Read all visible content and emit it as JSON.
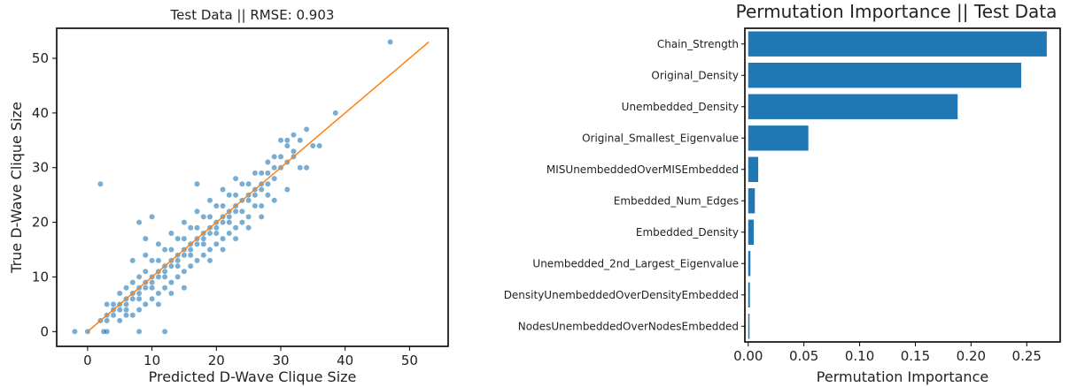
{
  "chart_data": [
    {
      "type": "scatter",
      "title": "Test Data || RMSE: 0.903",
      "xlabel": "Predicted D-Wave Clique Size",
      "ylabel": "True D-Wave Clique Size",
      "xlim": [
        -4.8,
        56
      ],
      "ylim": [
        -2.7,
        55.5
      ],
      "xticks": [
        0,
        10,
        20,
        30,
        40,
        50
      ],
      "yticks": [
        0,
        10,
        20,
        30,
        40,
        50
      ],
      "point_color": "#1f77b4",
      "line_color": "#ff7f0e",
      "reference_line": {
        "x": [
          0,
          53
        ],
        "y": [
          0,
          53
        ]
      },
      "points": [
        [
          -2,
          0
        ],
        [
          0,
          0
        ],
        [
          2,
          27
        ],
        [
          2.5,
          0
        ],
        [
          3,
          0
        ],
        [
          8,
          0
        ],
        [
          12,
          0
        ],
        [
          2,
          2
        ],
        [
          3,
          2
        ],
        [
          3,
          3
        ],
        [
          4,
          3
        ],
        [
          5,
          4
        ],
        [
          4,
          4
        ],
        [
          6,
          4
        ],
        [
          5,
          5
        ],
        [
          6,
          5
        ],
        [
          7,
          6
        ],
        [
          6,
          6
        ],
        [
          8,
          6
        ],
        [
          7,
          7
        ],
        [
          8,
          7
        ],
        [
          9,
          8
        ],
        [
          8,
          8
        ],
        [
          10,
          8
        ],
        [
          9,
          9
        ],
        [
          10,
          9
        ],
        [
          11,
          10
        ],
        [
          10,
          10
        ],
        [
          12,
          10
        ],
        [
          11,
          11
        ],
        [
          12,
          11
        ],
        [
          13,
          12
        ],
        [
          12,
          12
        ],
        [
          14,
          12
        ],
        [
          13,
          13
        ],
        [
          14,
          13
        ],
        [
          15,
          14
        ],
        [
          14,
          14
        ],
        [
          16,
          14
        ],
        [
          15,
          15
        ],
        [
          16,
          15
        ],
        [
          17,
          16
        ],
        [
          16,
          16
        ],
        [
          18,
          16
        ],
        [
          17,
          17
        ],
        [
          18,
          17
        ],
        [
          19,
          18
        ],
        [
          18,
          18
        ],
        [
          20,
          18
        ],
        [
          19,
          19
        ],
        [
          20,
          19
        ],
        [
          21,
          20
        ],
        [
          20,
          20
        ],
        [
          22,
          20
        ],
        [
          21,
          21
        ],
        [
          22,
          21
        ],
        [
          23,
          22
        ],
        [
          22,
          22
        ],
        [
          24,
          22
        ],
        [
          23,
          23
        ],
        [
          25,
          24
        ],
        [
          24,
          24
        ],
        [
          26,
          25
        ],
        [
          25,
          25
        ],
        [
          27,
          26
        ],
        [
          26,
          26
        ],
        [
          28,
          27
        ],
        [
          27,
          27
        ],
        [
          29,
          28
        ],
        [
          28,
          29
        ],
        [
          30,
          30
        ],
        [
          29,
          30
        ],
        [
          31,
          31
        ],
        [
          30,
          32
        ],
        [
          32,
          33
        ],
        [
          31,
          34
        ],
        [
          33,
          35
        ],
        [
          32,
          36
        ],
        [
          34,
          37
        ],
        [
          35,
          34
        ],
        [
          33,
          30
        ],
        [
          28,
          25
        ],
        [
          26,
          23
        ],
        [
          24,
          20
        ],
        [
          22,
          18
        ],
        [
          20,
          16
        ],
        [
          18,
          14
        ],
        [
          16,
          12
        ],
        [
          14,
          10
        ],
        [
          12,
          8
        ],
        [
          10,
          6
        ],
        [
          8,
          4
        ],
        [
          6,
          3
        ],
        [
          4,
          5
        ],
        [
          6,
          8
        ],
        [
          8,
          10
        ],
        [
          10,
          13
        ],
        [
          12,
          15
        ],
        [
          14,
          17
        ],
        [
          16,
          19
        ],
        [
          18,
          21
        ],
        [
          20,
          23
        ],
        [
          22,
          25
        ],
        [
          24,
          27
        ],
        [
          26,
          29
        ],
        [
          28,
          31
        ],
        [
          8,
          20
        ],
        [
          10,
          21
        ],
        [
          9,
          17
        ],
        [
          17,
          27
        ],
        [
          15,
          8
        ],
        [
          13,
          7
        ],
        [
          11,
          5
        ],
        [
          19,
          13
        ],
        [
          21,
          15
        ],
        [
          23,
          17
        ],
        [
          25,
          19
        ],
        [
          27,
          21
        ],
        [
          29,
          24
        ],
        [
          31,
          26
        ],
        [
          7,
          13
        ],
        [
          9,
          14
        ],
        [
          11,
          16
        ],
        [
          13,
          18
        ],
        [
          15,
          20
        ],
        [
          17,
          22
        ],
        [
          19,
          24
        ],
        [
          21,
          26
        ],
        [
          23,
          28
        ],
        [
          38.5,
          40
        ],
        [
          47,
          53
        ],
        [
          30,
          35
        ],
        [
          32,
          32
        ],
        [
          34,
          30
        ],
        [
          36,
          34
        ],
        [
          5,
          2
        ],
        [
          7,
          3
        ],
        [
          9,
          5
        ],
        [
          11,
          7
        ],
        [
          13,
          9
        ],
        [
          15,
          11
        ],
        [
          17,
          13
        ],
        [
          19,
          15
        ],
        [
          21,
          17
        ],
        [
          23,
          19
        ],
        [
          25,
          21
        ],
        [
          27,
          23
        ],
        [
          3,
          5
        ],
        [
          5,
          7
        ],
        [
          7,
          9
        ],
        [
          9,
          11
        ],
        [
          11,
          13
        ],
        [
          13,
          15
        ],
        [
          15,
          17
        ],
        [
          17,
          19
        ],
        [
          19,
          21
        ],
        [
          21,
          23
        ],
        [
          23,
          25
        ],
        [
          25,
          27
        ],
        [
          27,
          29
        ],
        [
          29,
          32
        ],
        [
          31,
          35
        ]
      ]
    },
    {
      "type": "bar",
      "orientation": "horizontal",
      "title": "Permutation Importance || Test Data",
      "xlabel": "Permutation Importance",
      "ylabel": "",
      "xlim": [
        -0.003,
        0.28
      ],
      "xticks": [
        0.0,
        0.05,
        0.1,
        0.15,
        0.2,
        0.25
      ],
      "xtick_labels": [
        "0.00",
        "0.05",
        "0.10",
        "0.15",
        "0.20",
        "0.25"
      ],
      "bar_color": "#1f77b4",
      "categories": [
        "Chain_Strength",
        "Original_Density",
        "Unembedded_Density",
        "Original_Smallest_Eigenvalue",
        "MISUnembeddedOverMISEmbedded",
        "Embedded_Num_Edges",
        "Embedded_Density",
        "Unembedded_2nd_Largest_Eigenvalue",
        "DensityUnembeddedOverDensityEmbedded",
        "NodesUnembeddedOverNodesEmbedded"
      ],
      "values": [
        0.268,
        0.245,
        0.188,
        0.054,
        0.009,
        0.006,
        0.005,
        0.002,
        0.0015,
        0.0012
      ]
    }
  ]
}
